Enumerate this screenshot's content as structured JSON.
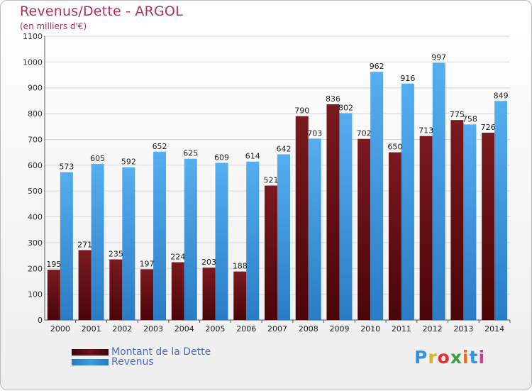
{
  "title": "Revenus/Dette - ARGOL",
  "subtitle": "(en milliers d'€)",
  "colors": {
    "dette": "#7a1a1f",
    "revenus": "#3b9be3",
    "title": "#b03060",
    "legend_text": "#4b6bd3"
  },
  "legend": [
    {
      "label": "Montant de la Dette",
      "color": "#6b1418"
    },
    {
      "label": "Revenus",
      "color": "#3b9be3"
    }
  ],
  "logo": {
    "text": "Proxiti",
    "icon": "proxiti-logo"
  },
  "chart_data": {
    "type": "bar",
    "categories": [
      "2000",
      "2001",
      "2002",
      "2003",
      "2004",
      "2005",
      "2006",
      "2007",
      "2008",
      "2009",
      "2010",
      "2011",
      "2012",
      "2013",
      "2014"
    ],
    "series": [
      {
        "name": "Montant de la Dette",
        "values": [
          195,
          271,
          235,
          197,
          224,
          203,
          188,
          521,
          790,
          836,
          702,
          650,
          713,
          775,
          726
        ]
      },
      {
        "name": "Revenus",
        "values": [
          573,
          605,
          592,
          652,
          625,
          609,
          614,
          642,
          703,
          802,
          962,
          916,
          997,
          758,
          849
        ]
      }
    ],
    "ylim": [
      0,
      1100
    ],
    "yticks": [
      0,
      100,
      200,
      300,
      400,
      500,
      600,
      700,
      800,
      900,
      1000,
      1100
    ],
    "grid": true,
    "legend_position": "bottom-left"
  }
}
